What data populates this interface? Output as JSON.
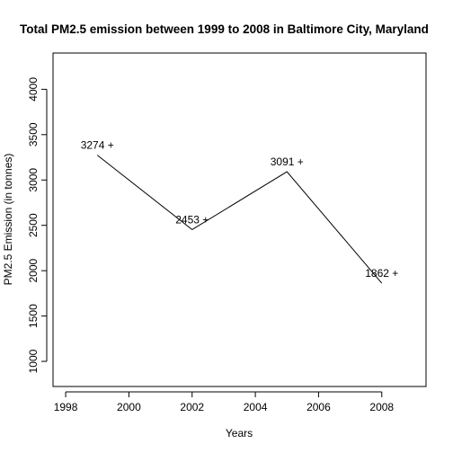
{
  "chart_data": {
    "type": "line",
    "title": "Total PM2.5 emission between 1999 to 2008 in Baltimore City, Maryland",
    "xlabel": "Years",
    "ylabel": "PM2.5 Emission (in tonnes)",
    "x": [
      1999,
      2002,
      2005,
      2008
    ],
    "series": [
      {
        "values": [
          3274,
          2453,
          3091,
          1862
        ]
      }
    ],
    "data_labels": [
      "3274 +",
      "2453 +",
      "3091 +",
      "1862 +"
    ],
    "xlim": [
      1997.6,
      2009.4
    ],
    "ylim": [
      723,
      4400
    ],
    "xticks": [
      1998,
      2000,
      2002,
      2004,
      2006,
      2008
    ],
    "yticks": [
      1000,
      1500,
      2000,
      2500,
      3000,
      3500,
      4000
    ],
    "grid": false,
    "line_color": "#000000"
  }
}
